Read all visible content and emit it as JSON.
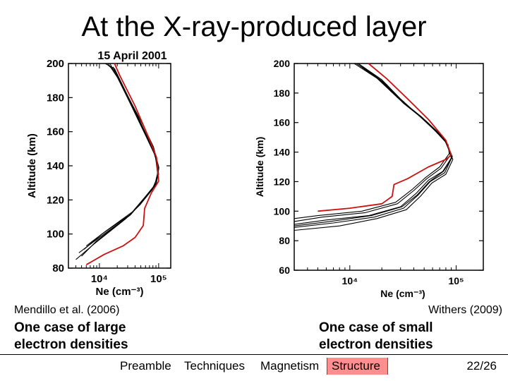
{
  "slide_title": "At the X-ray-produced layer",
  "left": {
    "citation": "Mendillo et al. (2006)",
    "description": "One case of large electron densities"
  },
  "right": {
    "citation": "Withers (2009)",
    "description": "One case of small electron densities"
  },
  "nav": {
    "items": [
      "Preamble",
      "Techniques",
      "Magnetism",
      "Structure"
    ],
    "active": "Structure",
    "page": "22/26"
  },
  "chart_data": [
    {
      "type": "line",
      "title": "15 April 2001",
      "xlabel": "Ne (cm⁻³)",
      "ylabel": "Altitude (km)",
      "x_scale": "log",
      "xlim": [
        3000,
        160000
      ],
      "ylim": [
        80,
        200
      ],
      "x_ticks": [
        10000,
        100000
      ],
      "x_tick_labels": [
        "10⁴",
        "10⁵"
      ],
      "y_ticks": [
        80,
        100,
        120,
        140,
        160,
        180,
        200
      ],
      "highlight_color": "#cc1111",
      "series_color": "#000000",
      "series": [
        {
          "color": "#000000",
          "points": [
            [
              5000,
              87
            ],
            [
              9000,
              96
            ],
            [
              30000,
              110
            ],
            [
              50000,
              118
            ],
            [
              80000,
              127
            ],
            [
              100000,
              135
            ],
            [
              90000,
              145
            ],
            [
              60000,
              158
            ],
            [
              35000,
              175
            ],
            [
              20000,
              192
            ],
            [
              14000,
              200
            ]
          ]
        },
        {
          "color": "#000000",
          "points": [
            [
              4500,
              89
            ],
            [
              10000,
              98
            ],
            [
              33000,
              111
            ],
            [
              55000,
              120
            ],
            [
              85000,
              128
            ],
            [
              98000,
              137
            ],
            [
              85000,
              148
            ],
            [
              58000,
              160
            ],
            [
              33000,
              178
            ],
            [
              19000,
              195
            ],
            [
              13000,
              200
            ]
          ]
        },
        {
          "color": "#000000",
          "points": [
            [
              5500,
              91
            ],
            [
              11000,
              100
            ],
            [
              35000,
              112
            ],
            [
              58000,
              121
            ],
            [
              90000,
              129
            ],
            [
              100000,
              138
            ],
            [
              80000,
              150
            ],
            [
              55000,
              162
            ],
            [
              31000,
              180
            ],
            [
              18000,
              197
            ],
            [
              12500,
              200
            ]
          ]
        },
        {
          "color": "#000000",
          "points": [
            [
              4000,
              85
            ],
            [
              8000,
              94
            ],
            [
              28000,
              109
            ],
            [
              48000,
              117
            ],
            [
              78000,
              126
            ],
            [
              97000,
              134
            ],
            [
              88000,
              146
            ],
            [
              62000,
              157
            ],
            [
              36000,
              174
            ],
            [
              21000,
              191
            ],
            [
              15000,
              200
            ]
          ]
        },
        {
          "color": "#000000",
          "points": [
            [
              6000,
              93
            ],
            [
              12000,
              101
            ],
            [
              36000,
              113
            ],
            [
              60000,
              122
            ],
            [
              92000,
              130
            ],
            [
              101000,
              139
            ],
            [
              82000,
              151
            ],
            [
              56000,
              163
            ],
            [
              30000,
              181
            ],
            [
              17000,
              198
            ]
          ]
        },
        {
          "color": "#cc1111",
          "points": [
            [
              6000,
              82
            ],
            [
              12000,
              88
            ],
            [
              25000,
              93
            ],
            [
              40000,
              98
            ],
            [
              55000,
              105
            ],
            [
              58000,
              115
            ],
            [
              75000,
              124
            ],
            [
              100000,
              131
            ],
            [
              92000,
              145
            ],
            [
              65000,
              158
            ],
            [
              40000,
              175
            ],
            [
              22000,
              193
            ],
            [
              18000,
              200
            ]
          ]
        }
      ]
    },
    {
      "type": "line",
      "title": "",
      "xlabel": "Ne (cm⁻³)",
      "ylabel": "Altitude (km)",
      "x_scale": "log",
      "xlim": [
        3000,
        180000
      ],
      "ylim": [
        60,
        200
      ],
      "x_ticks": [
        10000,
        100000
      ],
      "x_tick_labels": [
        "10⁴",
        "10⁵"
      ],
      "y_ticks": [
        60,
        80,
        100,
        120,
        140,
        160,
        180,
        200
      ],
      "highlight_color": "#cc1111",
      "series_color": "#000000",
      "series": [
        {
          "color": "#000000",
          "points": [
            [
              3000,
              91
            ],
            [
              6000,
              94
            ],
            [
              15000,
              97
            ],
            [
              30000,
              103
            ],
            [
              42000,
              112
            ],
            [
              55000,
              121
            ],
            [
              75000,
              127
            ],
            [
              90000,
              136
            ],
            [
              80000,
              148
            ],
            [
              50000,
              162
            ],
            [
              30000,
              175
            ],
            [
              20000,
              188
            ],
            [
              12000,
              200
            ]
          ]
        },
        {
          "color": "#000000",
          "points": [
            [
              3000,
              89
            ],
            [
              7000,
              92
            ],
            [
              17000,
              96
            ],
            [
              32000,
              102
            ],
            [
              44000,
              111
            ],
            [
              57000,
              120
            ],
            [
              78000,
              126
            ],
            [
              92000,
              137
            ],
            [
              78000,
              149
            ],
            [
              48000,
              163
            ],
            [
              29000,
              176
            ],
            [
              19000,
              189
            ],
            [
              11500,
              200
            ]
          ]
        },
        {
          "color": "#000000",
          "points": [
            [
              3000,
              93
            ],
            [
              5500,
              96
            ],
            [
              14000,
              99
            ],
            [
              28000,
              105
            ],
            [
              40000,
              114
            ],
            [
              53000,
              122
            ],
            [
              72000,
              129
            ],
            [
              88000,
              138
            ],
            [
              82000,
              146
            ],
            [
              52000,
              161
            ],
            [
              31000,
              174
            ],
            [
              21000,
              187
            ],
            [
              12500,
              199
            ]
          ]
        },
        {
          "color": "#000000",
          "points": [
            [
              3000,
              87
            ],
            [
              8000,
              90
            ],
            [
              18000,
              95
            ],
            [
              34000,
              101
            ],
            [
              46000,
              110
            ],
            [
              59000,
              119
            ],
            [
              80000,
              125
            ],
            [
              93000,
              135
            ],
            [
              76000,
              150
            ],
            [
              47000,
              164
            ],
            [
              28000,
              177
            ],
            [
              18000,
              190
            ],
            [
              11000,
              200
            ]
          ]
        },
        {
          "color": "#000000",
          "points": [
            [
              3000,
              95
            ],
            [
              5000,
              97
            ],
            [
              13000,
              100
            ],
            [
              27000,
              106
            ],
            [
              39000,
              115
            ],
            [
              52000,
              123
            ],
            [
              70000,
              130
            ],
            [
              86000,
              139
            ],
            [
              84000,
              145
            ],
            [
              54000,
              160
            ],
            [
              32000,
              173
            ],
            [
              22000,
              186
            ],
            [
              13000,
              198
            ]
          ]
        },
        {
          "color": "#000000",
          "points": [
            [
              3000,
              90
            ],
            [
              6500,
              93
            ],
            [
              16000,
              97
            ],
            [
              31000,
              103
            ],
            [
              43000,
              111
            ],
            [
              56000,
              120
            ],
            [
              76000,
              127
            ],
            [
              91000,
              136
            ],
            [
              79000,
              148
            ],
            [
              49000,
              162
            ],
            [
              30000,
              176
            ],
            [
              20000,
              189
            ],
            [
              12000,
              200
            ]
          ]
        },
        {
          "color": "#cc1111",
          "points": [
            [
              5000,
              100
            ],
            [
              10000,
              102
            ],
            [
              20000,
              105
            ],
            [
              25000,
              110
            ],
            [
              26000,
              118
            ],
            [
              35000,
              122
            ],
            [
              55000,
              130
            ],
            [
              80000,
              135
            ],
            [
              90000,
              138
            ],
            [
              80000,
              148
            ],
            [
              55000,
              162
            ],
            [
              35000,
              176
            ],
            [
              22000,
              190
            ],
            [
              15000,
              200
            ]
          ]
        }
      ]
    }
  ]
}
